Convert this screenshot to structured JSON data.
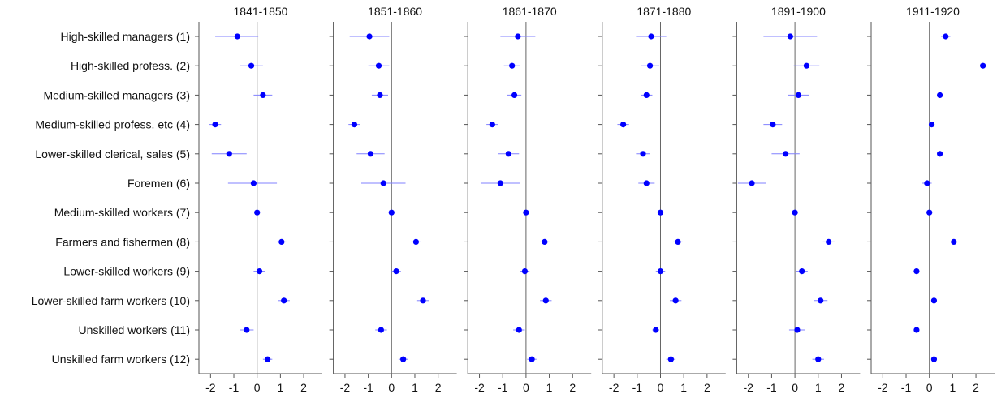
{
  "chart_data": {
    "type": "scatter",
    "subtype": "coefficient-plot-with-confidence-intervals",
    "colors": {
      "point": "#0000ff",
      "ci": "#8080ff",
      "axis": "#555555",
      "zero_line": "#666666"
    },
    "categories": [
      "High-skilled managers (1)",
      "High-skilled profess. (2)",
      "Medium-skilled managers (3)",
      "Medium-skilled profess. etc (4)",
      "Lower-skilled clerical, sales (5)",
      "Foremen (6)",
      "Medium-skilled workers (7)",
      "Farmers and fishermen (8)",
      "Lower-skilled workers (9)",
      "Lower-skilled farm workers (10)",
      "Unskilled workers (11)",
      "Unskilled farm workers (12)"
    ],
    "xlim": [
      -2.5,
      2.8
    ],
    "xticks": [
      -2,
      -1,
      0,
      1,
      2
    ],
    "xtick_labels": [
      "-2",
      "-1",
      "0",
      "1",
      "2"
    ],
    "grid": false,
    "panels": [
      {
        "title": "1841-1850",
        "estimates": [
          -0.85,
          -0.25,
          0.25,
          -1.8,
          -1.2,
          -0.15,
          0.0,
          1.05,
          0.1,
          1.15,
          -0.45,
          0.45
        ],
        "ci_low": [
          -1.8,
          -0.75,
          -0.15,
          -2.05,
          -1.95,
          -1.25,
          0.0,
          0.85,
          -0.15,
          0.9,
          -0.75,
          0.25
        ],
        "ci_high": [
          0.05,
          0.25,
          0.65,
          -1.55,
          -0.45,
          0.85,
          0.0,
          1.25,
          0.35,
          1.4,
          -0.15,
          0.65
        ]
      },
      {
        "title": "1851-1860",
        "estimates": [
          -0.95,
          -0.55,
          -0.5,
          -1.6,
          -0.9,
          -0.35,
          0.0,
          1.05,
          0.2,
          1.35,
          -0.45,
          0.5
        ],
        "ci_low": [
          -1.8,
          -1.0,
          -0.85,
          -1.85,
          -1.5,
          -1.3,
          0.0,
          0.85,
          0.0,
          1.1,
          -0.7,
          0.3
        ],
        "ci_high": [
          -0.1,
          -0.1,
          -0.15,
          -1.35,
          -0.3,
          0.6,
          0.0,
          1.25,
          0.4,
          1.6,
          -0.2,
          0.7
        ]
      },
      {
        "title": "1861-1870",
        "estimates": [
          -0.35,
          -0.6,
          -0.5,
          -1.45,
          -0.75,
          -1.1,
          0.0,
          0.8,
          -0.05,
          0.85,
          -0.3,
          0.25
        ],
        "ci_low": [
          -1.1,
          -0.95,
          -0.8,
          -1.7,
          -1.2,
          -1.95,
          0.0,
          0.6,
          -0.25,
          0.6,
          -0.55,
          0.05
        ],
        "ci_high": [
          0.4,
          -0.25,
          -0.2,
          -1.2,
          -0.3,
          -0.25,
          0.0,
          1.0,
          0.15,
          1.1,
          -0.05,
          0.45
        ]
      },
      {
        "title": "1871-1880",
        "estimates": [
          -0.4,
          -0.45,
          -0.6,
          -1.6,
          -0.75,
          -0.6,
          0.0,
          0.75,
          0.0,
          0.65,
          -0.2,
          0.45
        ],
        "ci_low": [
          -1.05,
          -0.85,
          -0.85,
          -1.85,
          -1.05,
          -0.95,
          0.0,
          0.55,
          -0.2,
          0.4,
          -0.35,
          0.25
        ],
        "ci_high": [
          0.25,
          -0.05,
          -0.35,
          -1.35,
          -0.45,
          -0.25,
          0.0,
          0.95,
          0.2,
          0.9,
          -0.05,
          0.65
        ]
      },
      {
        "title": "1891-1900",
        "estimates": [
          -0.2,
          0.5,
          0.15,
          -0.95,
          -0.4,
          -1.85,
          0.0,
          1.45,
          0.3,
          1.1,
          0.1,
          1.0
        ],
        "ci_low": [
          -1.35,
          -0.05,
          -0.3,
          -1.35,
          -1.0,
          -2.45,
          0.0,
          1.2,
          0.05,
          0.8,
          -0.25,
          0.75
        ],
        "ci_high": [
          0.95,
          1.05,
          0.6,
          -0.55,
          0.2,
          -1.25,
          0.0,
          1.7,
          0.55,
          1.4,
          0.45,
          1.25
        ]
      },
      {
        "title": "1911-1920",
        "estimates": [
          0.7,
          2.3,
          0.45,
          0.1,
          0.45,
          -0.1,
          0.0,
          1.05,
          -0.55,
          0.2,
          -0.55,
          0.2
        ],
        "ci_low": [
          0.5,
          2.3,
          0.45,
          0.0,
          0.35,
          -0.3,
          0.0,
          1.0,
          -0.6,
          0.1,
          -0.6,
          0.1
        ],
        "ci_high": [
          0.9,
          2.3,
          0.45,
          0.2,
          0.55,
          0.1,
          0.0,
          1.1,
          -0.5,
          0.3,
          -0.5,
          0.3
        ]
      }
    ]
  }
}
